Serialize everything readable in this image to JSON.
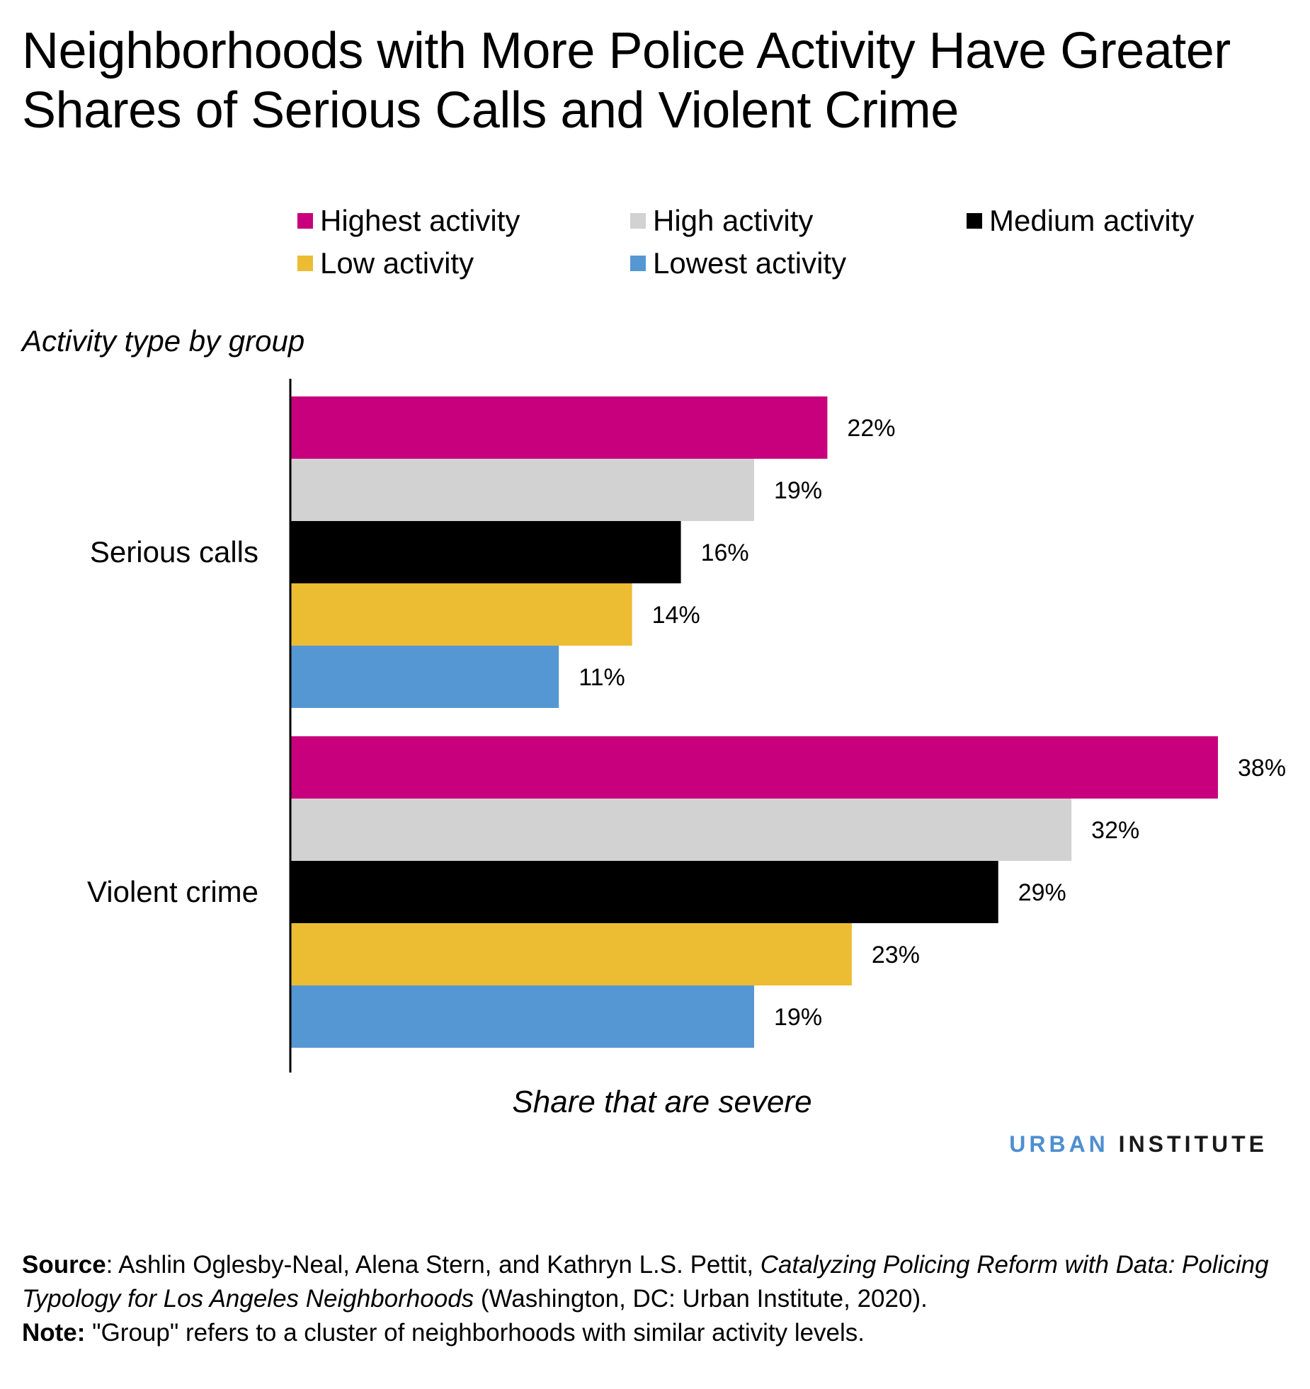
{
  "colors": {
    "highest": "#c8007d",
    "high": "#d2d2d2",
    "medium": "#000000",
    "low": "#ecbc33",
    "lowest": "#5597d3",
    "brand_blue": "#4e8fd0"
  },
  "chart_data": {
    "type": "bar",
    "orientation": "horizontal",
    "title": "Neighborhoods with More Police Activity Have Greater Shares of Serious Calls and Violent Crime",
    "ylabel": "Activity type by group",
    "xlabel": "Share that are severe",
    "categories": [
      "Serious calls",
      "Violent crime"
    ],
    "series": [
      {
        "name": "Highest activity",
        "color": "#c8007d",
        "values": [
          22,
          38
        ],
        "labels": [
          "22%",
          "38%"
        ]
      },
      {
        "name": "High activity",
        "color": "#d2d2d2",
        "values": [
          19,
          32
        ],
        "labels": [
          "19%",
          "32%"
        ]
      },
      {
        "name": "Medium activity",
        "color": "#000000",
        "values": [
          16,
          29
        ],
        "labels": [
          "16%",
          "29%"
        ]
      },
      {
        "name": "Low activity",
        "color": "#ecbc33",
        "values": [
          14,
          23
        ],
        "labels": [
          "14%",
          "23%"
        ]
      },
      {
        "name": "Lowest activity",
        "color": "#5597d3",
        "values": [
          11,
          19
        ],
        "labels": [
          "11%",
          "19%"
        ]
      }
    ],
    "xlim": [
      0,
      38
    ],
    "grid": false,
    "legend_position": "top"
  },
  "brand": {
    "part1": "URBAN",
    "part2": "INSTITUTE"
  },
  "footer": {
    "source_label": "Source",
    "source_text": ": Ashlin Oglesby-Neal, Alena Stern, and Kathryn L.S. Pettit, ",
    "source_title": "Catalyzing Policing Reform with Data: Policing Typology for Los Angeles Neighborhoods",
    "source_tail": " (Washington, DC: Urban Institute, 2020).",
    "note_label": "Note:",
    "note_text": " \"Group\" refers to a cluster of neighborhoods with similar activity levels."
  }
}
